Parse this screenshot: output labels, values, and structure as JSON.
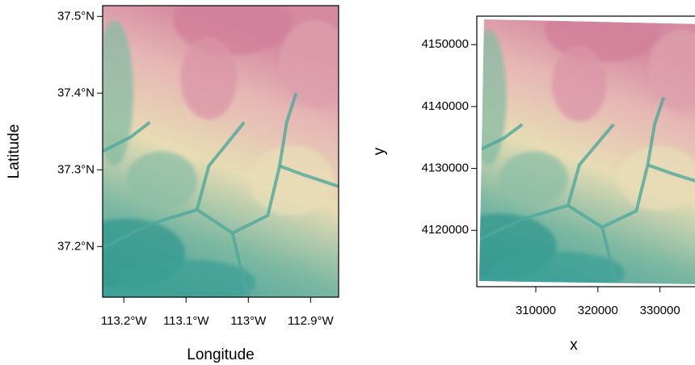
{
  "chart_data": [
    {
      "type": "raster",
      "xlabel": "Longitude",
      "ylabel": "Latitude",
      "xlim": [
        -113.234,
        -112.855
      ],
      "ylim": [
        37.134,
        37.514
      ],
      "xticks": [
        {
          "value": -113.2,
          "label": "113.2°W"
        },
        {
          "value": -113.1,
          "label": "113.1°W"
        },
        {
          "value": -113,
          "label": "113°W"
        },
        {
          "value": -112.9,
          "label": "112.9°W"
        }
      ],
      "yticks": [
        {
          "value": 37.2,
          "label": "37.2°N"
        },
        {
          "value": 37.3,
          "label": "37.3°N"
        },
        {
          "value": 37.4,
          "label": "37.4°N"
        },
        {
          "value": 37.5,
          "label": "37.5°N"
        }
      ]
    },
    {
      "type": "raster",
      "xlabel": "x",
      "ylabel": "y",
      "xlim": [
        300500,
        337200
      ],
      "ylim": [
        4110900,
        4154600
      ],
      "xticks": [
        310000,
        320000,
        330000
      ],
      "yticks": [
        4120000,
        4130000,
        4140000,
        4150000
      ]
    }
  ]
}
